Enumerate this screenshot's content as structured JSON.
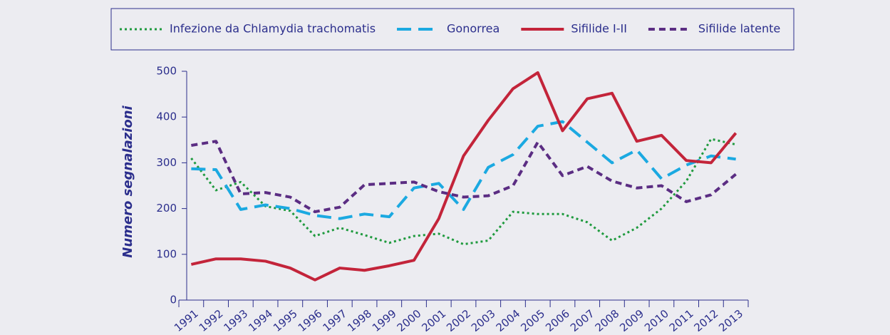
{
  "chart_data": {
    "type": "line",
    "y_label": "Numero segnalazioni",
    "categories": [
      "1991",
      "1992",
      "1993",
      "1994",
      "1995",
      "1996",
      "1997",
      "1998",
      "1999",
      "2000",
      "2001",
      "2002",
      "2003",
      "2004",
      "2005",
      "2006",
      "2007",
      "2008",
      "2009",
      "2010",
      "2011",
      "2012",
      "2013"
    ],
    "series": [
      {
        "name": "Infezione da Chlamydia trachomatis",
        "color": "#1f9a3e",
        "line_style": "dotted",
        "values": [
          310,
          240,
          258,
          205,
          195,
          140,
          158,
          142,
          125,
          140,
          145,
          122,
          130,
          193,
          188,
          188,
          170,
          130,
          158,
          200,
          260,
          352,
          340
        ]
      },
      {
        "name": "Gonorrea",
        "color": "#1ba9e1",
        "line_style": "dashed",
        "values": [
          287,
          285,
          198,
          208,
          200,
          185,
          178,
          188,
          182,
          245,
          255,
          198,
          290,
          318,
          380,
          390,
          345,
          300,
          328,
          265,
          295,
          315,
          308
        ]
      },
      {
        "name": "Sifilide I-II",
        "color": "#c3243a",
        "line_style": "solid",
        "values": [
          78,
          90,
          90,
          85,
          70,
          44,
          70,
          65,
          75,
          87,
          178,
          315,
          393,
          462,
          497,
          370,
          440,
          452,
          347,
          360,
          305,
          300,
          365
        ]
      },
      {
        "name": "Sifilide latente",
        "color": "#5b2d83",
        "line_style": "short-dash",
        "values": [
          338,
          347,
          232,
          235,
          225,
          193,
          203,
          252,
          255,
          258,
          237,
          225,
          228,
          250,
          345,
          272,
          292,
          260,
          245,
          250,
          215,
          230,
          275
        ]
      }
    ],
    "ylim": [
      0,
      500
    ],
    "yticks": [
      0,
      100,
      200,
      300,
      400,
      500
    ],
    "legend": "top",
    "grid": false
  }
}
